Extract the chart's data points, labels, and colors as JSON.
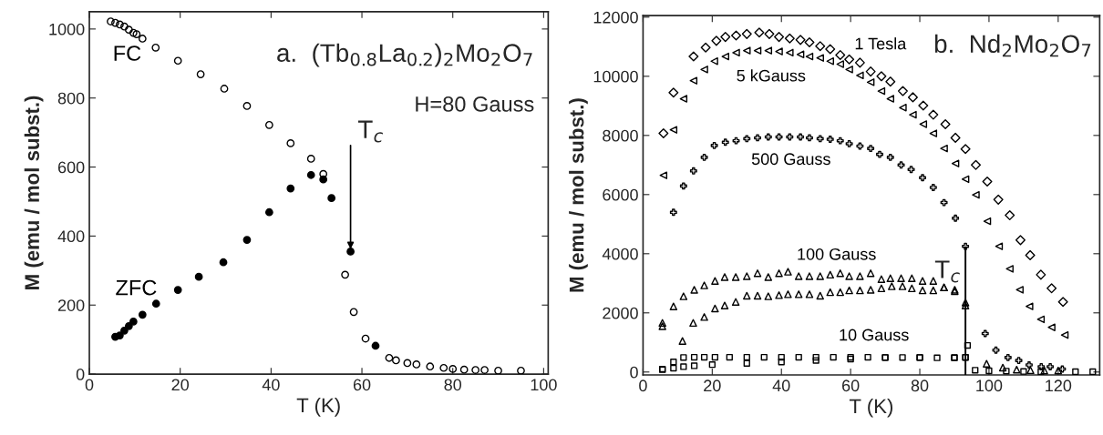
{
  "chart_data": [
    {
      "type": "scatter",
      "title": "a.  (Tb$_{0.8}$La$_{0.2}$)$_{2}$Mo$_{2}$O$_{7}$",
      "xlabel": "T (K)",
      "ylabel": "M (emu / mol subst.)",
      "xlim": [
        0,
        101
      ],
      "ylim": [
        0,
        1050
      ],
      "xticks": [
        0,
        20,
        40,
        60,
        80,
        100
      ],
      "yticks": [
        0,
        200,
        400,
        600,
        800,
        1000
      ],
      "grid": false,
      "legend": false,
      "annotations": [
        "H=80 Gauss",
        {
          "text": "T$_{c}$",
          "x": 57.5,
          "y": 355
        }
      ],
      "series": [
        {
          "name": "FC",
          "color": "#000000",
          "marker": "circle",
          "x": [
            4.7,
            5.7,
            6.7,
            7.7,
            8.7,
            9.7,
            10.4,
            11.7,
            14.6,
            19.5,
            24.5,
            29.7,
            34.7,
            39.6,
            44.3,
            48.8,
            51.5,
            53.3,
            56.3,
            58.2,
            60.8,
            66,
            67.5,
            70,
            72,
            75,
            78,
            80,
            82.5,
            85,
            87,
            90,
            95
          ],
          "values": [
            1022,
            1018,
            1013,
            1007,
            998,
            989,
            985,
            972,
            946,
            908,
            869,
            827,
            777,
            722,
            669,
            624,
            580,
            null,
            288,
            180,
            103,
            47,
            40,
            32,
            28,
            22,
            18,
            15,
            13,
            12,
            12,
            10,
            10
          ]
        },
        {
          "name": "ZFC",
          "color": "#000000",
          "marker": "circle",
          "x": [
            5.7,
            6.7,
            7.7,
            8.7,
            9.7,
            11.7,
            14.7,
            19.5,
            24.1,
            29.5,
            34.7,
            39.6,
            44.3,
            48.8,
            51.5,
            53.3,
            57.5,
            63.0
          ],
          "values": [
            108,
            112,
            126,
            139,
            152,
            172,
            204,
            244,
            282,
            324,
            389,
            469,
            538,
            577,
            564,
            510,
            355,
            82
          ]
        }
      ]
    },
    {
      "type": "scatter",
      "title": "b.  Nd$_{2}$Mo$_{2}$O$_{7}$",
      "xlabel": "T (K)",
      "ylabel": "M (emu / mol subst.)",
      "xlim": [
        0,
        132
      ],
      "ylim": [
        -100,
        12050
      ],
      "xticks": [
        0,
        20,
        40,
        60,
        80,
        100,
        120
      ],
      "yticks": [
        0,
        2000,
        4000,
        6000,
        8000,
        10000,
        12000
      ],
      "grid": false,
      "legend": false,
      "annotations": [
        {
          "text": "T$_{c}$",
          "x": 93.2,
          "y": 4250
        }
      ],
      "series": [
        {
          "name": "1 Tesla",
          "color": "#000000",
          "marker": "diamond",
          "x": [
            5.9,
            8.8,
            14.6,
            18.1,
            21.2,
            23.8,
            26.9,
            30.0,
            33.6,
            36.5,
            39.3,
            42.4,
            45.5,
            48.1,
            51.2,
            54.1,
            57.0,
            59.6,
            62.7,
            65.8,
            68.9,
            71.5,
            75.1,
            78.0,
            81.0,
            83.9,
            87.4,
            90.3,
            93.2,
            96.2,
            99.5,
            102.7,
            106.0,
            109.1,
            111.9,
            115.0,
            118.1,
            121.4
          ],
          "values": [
            8070,
            9450,
            10670,
            10970,
            11200,
            11330,
            11380,
            11430,
            11480,
            11430,
            11330,
            11280,
            11230,
            11150,
            11020,
            10920,
            10720,
            10570,
            10460,
            10160,
            10000,
            9820,
            9500,
            9290,
            9010,
            8700,
            8380,
            7920,
            7540,
            7000,
            6440,
            5830,
            5300,
            4460,
            3950,
            3290,
            2830,
            2370
          ]
        },
        {
          "name": "5 kGauss",
          "color": "#000000",
          "marker": "triangle_left",
          "x": [
            5.9,
            8.8,
            11.7,
            14.6,
            17.7,
            20.6,
            23.8,
            26.9,
            30.0,
            33.1,
            36.2,
            39.3,
            42.4,
            45.5,
            48.1,
            51.2,
            54.1,
            57.0,
            59.6,
            62.7,
            65.8,
            68.9,
            71.5,
            75.1,
            78.0,
            81.0,
            83.9,
            87.0,
            90.3,
            93.2,
            96.2,
            99.5,
            102.9,
            106.0,
            108.9,
            111.7,
            115.0,
            118.1,
            121.9
          ],
          "values": [
            6650,
            8190,
            9240,
            9850,
            10230,
            10510,
            10670,
            10800,
            10870,
            10870,
            10870,
            10840,
            10800,
            10740,
            10670,
            10620,
            10510,
            10410,
            10230,
            10030,
            9800,
            9500,
            9240,
            8940,
            8700,
            8380,
            8070,
            7560,
            7050,
            6520,
            5990,
            5100,
            4250,
            3490,
            2780,
            2220,
            1780,
            1510,
            1250
          ]
        },
        {
          "name": "500 Gauss",
          "color": "#000000",
          "marker": "cross",
          "x": [
            8.8,
            11.7,
            14.6,
            17.7,
            20.6,
            23.8,
            26.9,
            30.0,
            33.1,
            36.2,
            39.3,
            42.4,
            45.5,
            48.1,
            51.2,
            54.1,
            57.0,
            59.6,
            62.7,
            65.8,
            68.4,
            71.5,
            74.6,
            77.5,
            80.8,
            83.9,
            87.0,
            90.3,
            93.2,
            98.9,
            102.0,
            105.5,
            108.6,
            111.6,
            115.1,
            117.7,
            121.2
          ],
          "values": [
            5400,
            6290,
            6800,
            7260,
            7660,
            7770,
            7820,
            7890,
            7920,
            7950,
            7950,
            7950,
            7950,
            7920,
            7890,
            7870,
            7820,
            7720,
            7640,
            7560,
            7360,
            7260,
            7000,
            6850,
            6570,
            6240,
            5730,
            5200,
            4250,
            1300,
            740,
            490,
            390,
            240,
            180,
            180,
            100
          ]
        },
        {
          "name": "100 Gauss",
          "color": "#000000",
          "marker": "triangle",
          "x": [
            5.6,
            8.8,
            11.7,
            14.8,
            17.7,
            20.8,
            23.6,
            26.8,
            30.0,
            33.1,
            36.2,
            39.3,
            41.9,
            45.0,
            48.1,
            51.2,
            54.1,
            57.0,
            59.6,
            62.7,
            65.8,
            68.9,
            71.5,
            74.6,
            77.7,
            80.8,
            83.9,
            87.0,
            90.1,
            93.2,
            99.3,
            104.0,
            108,
            112,
            116,
            120
          ],
          "values": [
            1660,
            2220,
            2560,
            2780,
            2930,
            3080,
            3210,
            3210,
            3240,
            3340,
            3210,
            3340,
            3390,
            3240,
            3240,
            3240,
            3290,
            3340,
            3240,
            3240,
            3340,
            3140,
            3170,
            3170,
            3170,
            3080,
            3080,
            2860,
            2780,
            2350,
            280,
            150,
            80,
            60,
            50,
            50
          ]
        },
        {
          "color": "#000000",
          "marker": "triangle",
          "x": [
            5.6,
            11.4,
            14.5,
            17.7,
            20.8,
            23.6,
            26.8,
            30.0,
            33.1,
            36.2,
            39.3,
            41.9,
            45.0,
            48.1,
            51.2,
            54.1,
            57.0,
            59.6,
            62.7,
            65.8,
            68.9,
            71.9,
            75.0,
            77.7,
            80.8,
            83.9,
            87.0,
            90.1,
            93.2
          ],
          "values": [
            1550,
            1050,
            1660,
            1860,
            2150,
            2250,
            2370,
            2580,
            2580,
            2560,
            2600,
            2630,
            2630,
            2630,
            2580,
            2700,
            2700,
            2760,
            2760,
            2780,
            2830,
            2900,
            2900,
            2830,
            2760,
            2760,
            2860,
            2730,
            2250
          ]
        },
        {
          "name": "10 Gauss",
          "color": "#000000",
          "marker": "square",
          "x": [
            5.6,
            8.8,
            11.7,
            14.8,
            17.7,
            20.8,
            25,
            30,
            35,
            40,
            45,
            50,
            55,
            60,
            65,
            70,
            75,
            80,
            85,
            90,
            93.2,
            93.8,
            96,
            100,
            105,
            110,
            115,
            120,
            125,
            130
          ],
          "values": [
            100,
            340,
            490,
            500,
            500,
            500,
            500,
            500,
            500,
            500,
            500,
            500,
            500,
            500,
            500,
            490,
            490,
            490,
            480,
            480,
            490,
            900,
            60,
            40,
            30,
            20,
            10,
            null,
            10,
            10
          ]
        },
        {
          "color": "#000000",
          "marker": "square",
          "x": [
            5.6,
            8.8,
            11.7,
            14.8,
            20,
            30,
            40,
            50,
            60,
            70,
            80,
            90,
            93.2
          ],
          "values": [
            80,
            130,
            180,
            210,
            250,
            290,
            340,
            390,
            440,
            490,
            490,
            490,
            500
          ]
        }
      ]
    }
  ]
}
